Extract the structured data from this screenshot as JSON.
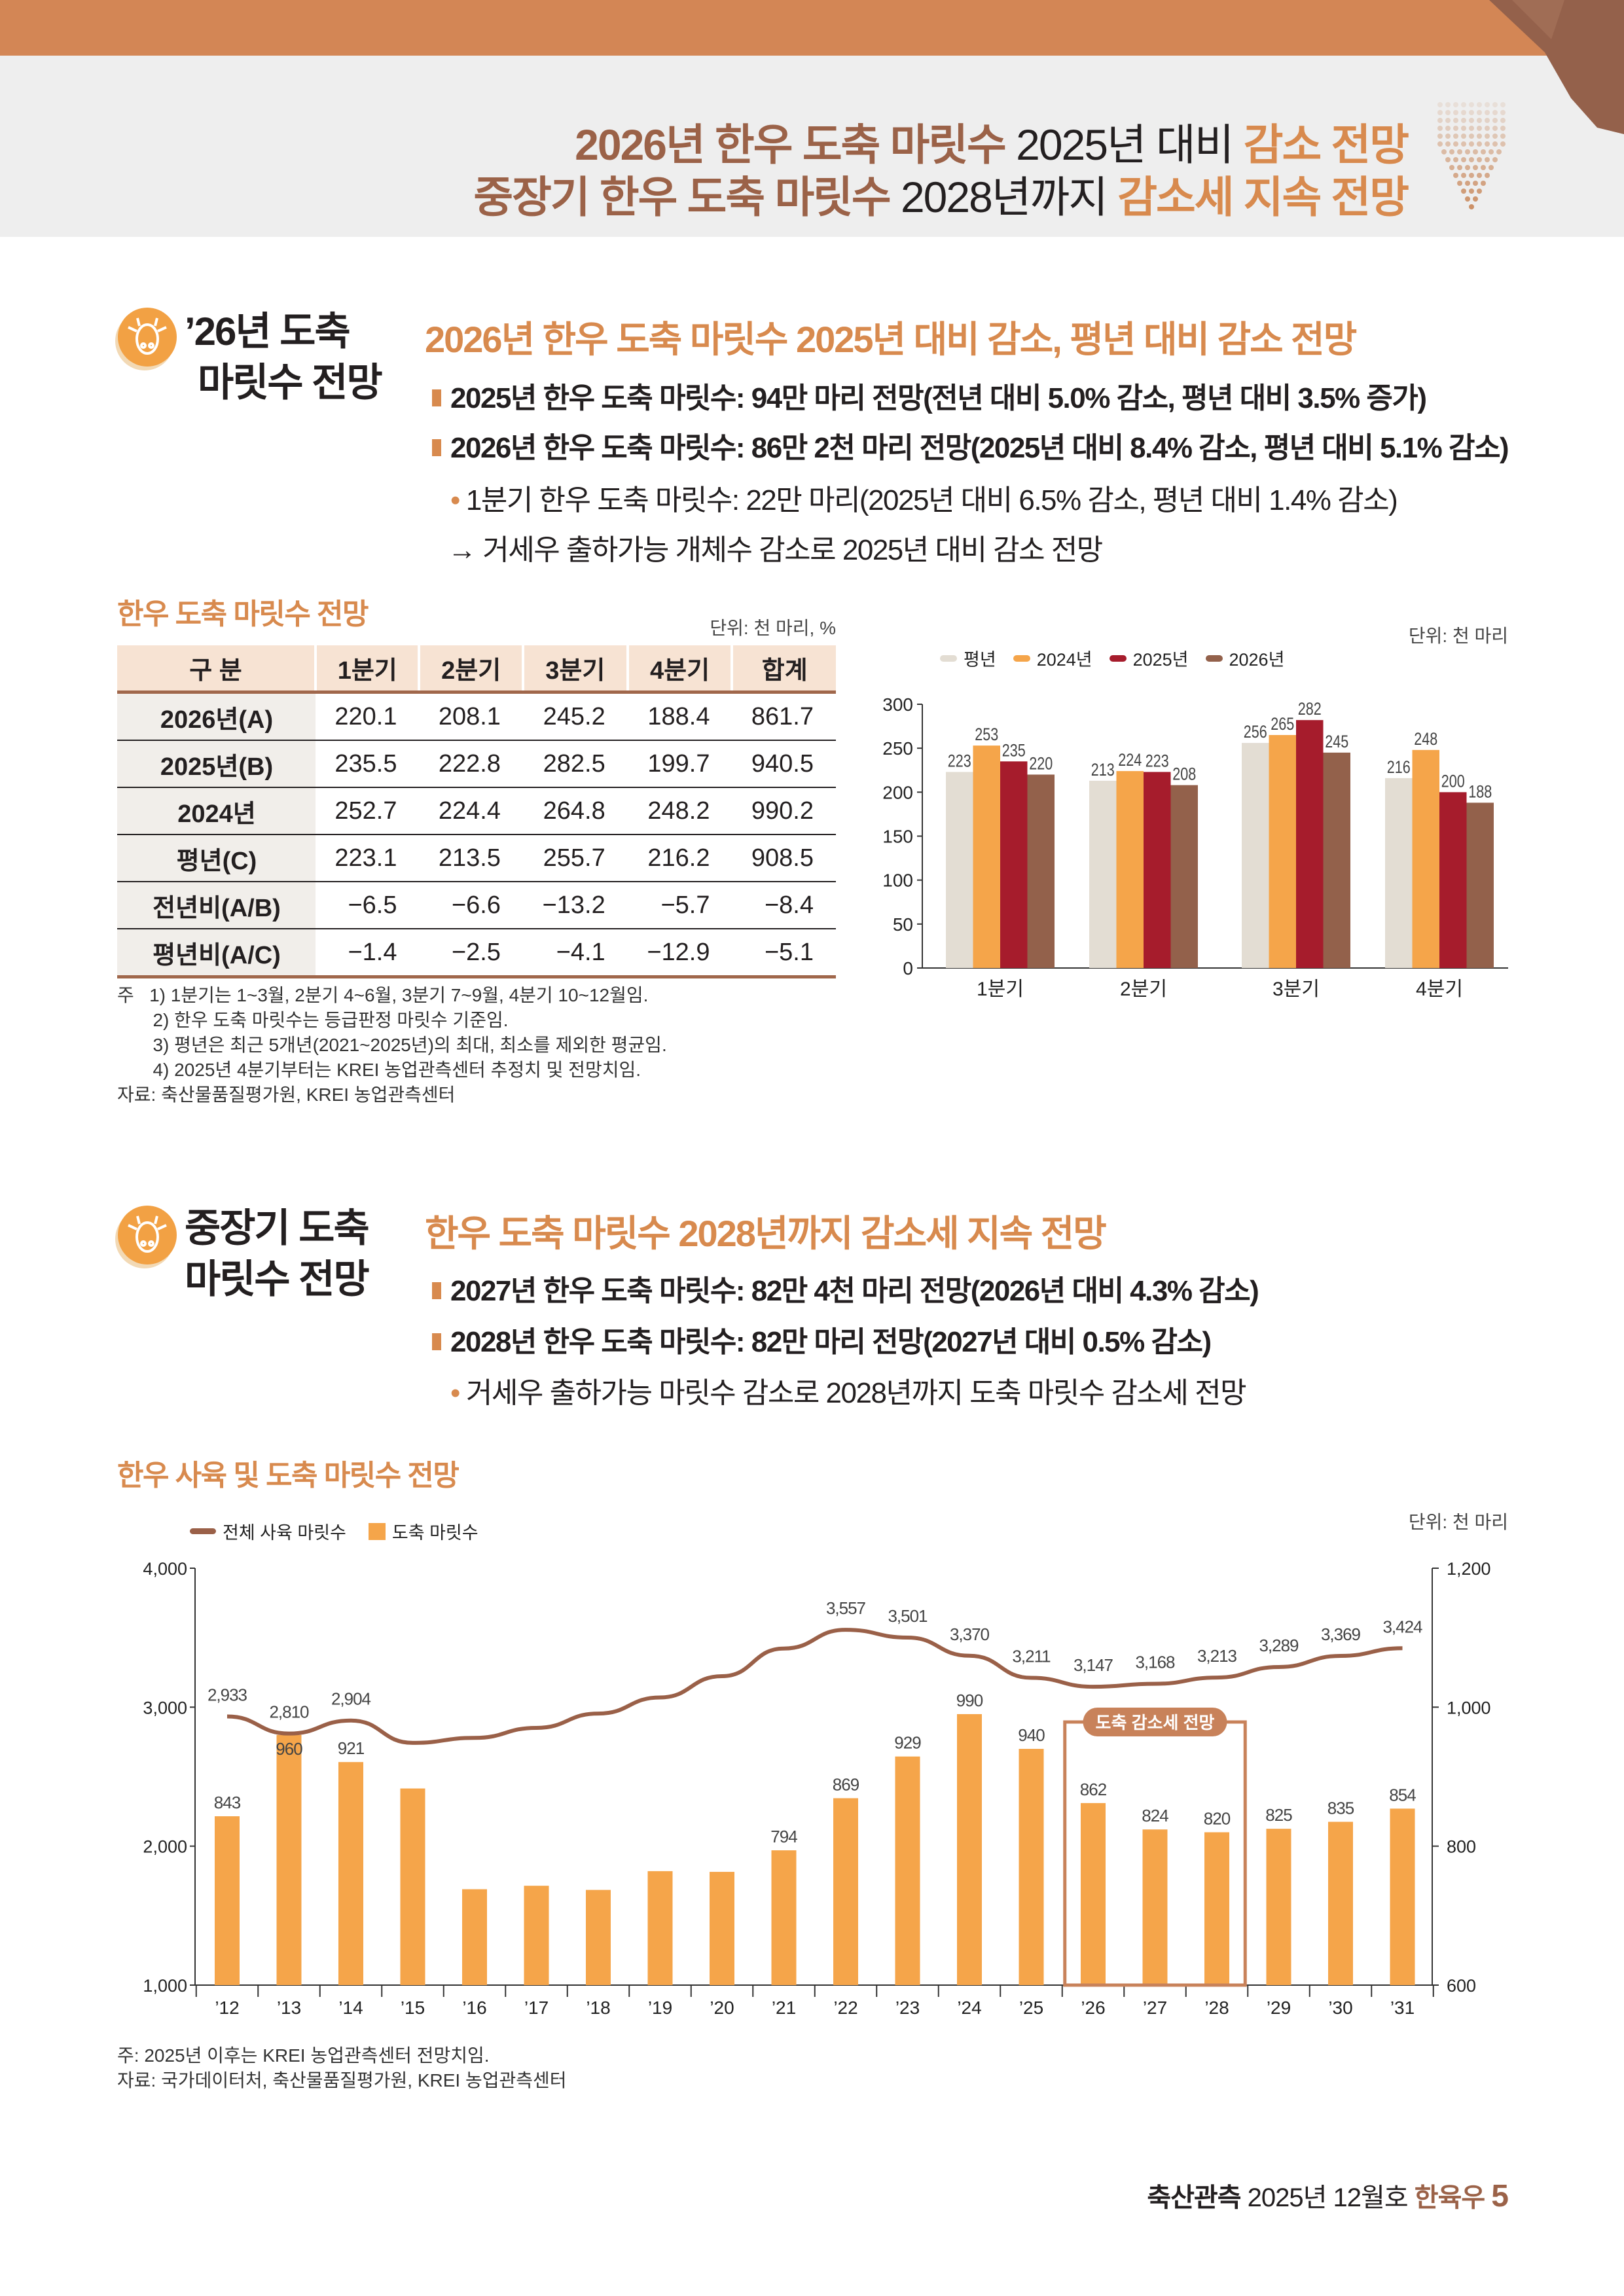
{
  "header": {
    "line1": {
      "part1": "2026년 한우 도축 마릿수",
      "part2": "2025년 대비",
      "part3": "감소 전망"
    },
    "line2": {
      "part1": "중장기 한우 도축 마릿수",
      "part2": "2028년까지",
      "part3": "감소세 지속 전망"
    }
  },
  "section1": {
    "title_line1": "’26년 도축",
    "title_line2": "마릿수 전망",
    "heading": "2026년 한우 도축 마릿수 2025년 대비 감소, 평년 대비 감소 전망",
    "bullets": [
      "2025년 한우 도축 마릿수: 94만 마리 전망(전년 대비 5.0% 감소, 평년 대비 3.5% 증가)",
      "2026년 한우 도축 마릿수: 86만 2천 마리 전망(2025년 대비 8.4% 감소, 평년 대비 5.1% 감소)"
    ],
    "sub_bullet": "1분기 한우 도축 마릿수: 22만 마리(2025년 대비 6.5% 감소, 평년 대비 1.4% 감소)",
    "arrow_note": "거세우 출하가능 개체수 감소로 2025년 대비 감소 전망",
    "arrow_glyph": "→"
  },
  "table": {
    "caption": "한우 도축 마릿수 전망",
    "unit": "단위: 천 마리, %",
    "headers": [
      "구 분",
      "1분기",
      "2분기",
      "3분기",
      "4분기",
      "합계"
    ],
    "rows": [
      [
        "2026년(A)",
        "220.1",
        "208.1",
        "245.2",
        "188.4",
        "861.7"
      ],
      [
        "2025년(B)",
        "235.5",
        "222.8",
        "282.5",
        "199.7",
        "940.5"
      ],
      [
        "2024년",
        "252.7",
        "224.4",
        "264.8",
        "248.2",
        "990.2"
      ],
      [
        "평년(C)",
        "223.1",
        "213.5",
        "255.7",
        "216.2",
        "908.5"
      ],
      [
        "전년비(A/B)",
        "−6.5",
        "−6.6",
        "−13.2",
        "−5.7",
        "−8.4"
      ],
      [
        "평년비(A/C)",
        "−1.4",
        "−2.5",
        "−4.1",
        "−12.9",
        "−5.1"
      ]
    ],
    "notes": [
      "주   1) 1분기는 1~3월, 2분기 4~6월, 3분기 7~9월, 4분기 10~12월임.",
      "       2) 한우 도축 마릿수는 등급판정 마릿수 기준임.",
      "       3) 평년은 최근 5개년(2021~2025년)의 최대, 최소를 제외한 평균임.",
      "       4) 2025년 4분기부터는 KREI 농업관측센터 추정치 및 전망치임.",
      "자료: 축산물품질평가원, KREI 농업관측센터"
    ]
  },
  "chart_data": [
    {
      "type": "bar",
      "title": "",
      "unit": "단위: 천 마리",
      "categories": [
        "1분기",
        "2분기",
        "3분기",
        "4분기"
      ],
      "series": [
        {
          "name": "평년",
          "color": "#e3ddd3",
          "values": [
            223,
            213,
            256,
            216
          ]
        },
        {
          "name": "2024년",
          "color": "#f5a54a",
          "values": [
            253,
            224,
            265,
            248
          ]
        },
        {
          "name": "2025년",
          "color": "#a61c2c",
          "values": [
            235,
            223,
            282,
            200
          ]
        },
        {
          "name": "2026년",
          "color": "#93614b",
          "values": [
            220,
            208,
            245,
            188
          ]
        }
      ],
      "ylim": [
        0,
        300
      ],
      "yticks": [
        "0",
        "50",
        "100",
        "150",
        "200",
        "250",
        "300"
      ],
      "legend": "top-left",
      "grid": false
    },
    {
      "type": "bar+line",
      "title": "한우 사육 및 도축 마릿수 전망",
      "unit": "단위: 천 마리",
      "categories": [
        "’12",
        "’13",
        "’14",
        "’15",
        "’16",
        "’17",
        "’18",
        "’19",
        "’20",
        "’21",
        "’22",
        "’23",
        "’24",
        "’25",
        "’26",
        "’27",
        "’28",
        "’29",
        "’30",
        "’31"
      ],
      "line": {
        "name": "전체 사육 마릿수",
        "color": "#9a6048",
        "axis": "left",
        "values": [
          2933,
          2810,
          2904,
          2743,
          2779,
          2851,
          2954,
          3070,
          3223,
          3422,
          3557,
          3501,
          3370,
          3211,
          3147,
          3168,
          3213,
          3289,
          3369,
          3424
        ],
        "labels": [
          "2,933",
          "2,810",
          "2,904",
          "",
          "",
          "",
          "",
          "",
          "",
          "",
          "3,557",
          "3,501",
          "3,370",
          "3,211",
          "3,147",
          "3,168",
          "3,213",
          "3,289",
          "3,369",
          "3,424"
        ]
      },
      "bars": {
        "name": "도축 마릿수",
        "color": "#f5a54a",
        "axis": "right",
        "values": [
          843,
          960,
          921,
          883,
          738,
          743,
          737,
          764,
          763,
          794,
          869,
          929,
          990,
          940,
          862,
          824,
          820,
          825,
          835,
          854
        ],
        "labels": [
          "843",
          "960",
          "921",
          "",
          "",
          "",
          "",
          "",
          "",
          "794",
          "869",
          "929",
          "990",
          "940",
          "862",
          "824",
          "820",
          "825",
          "835",
          "854"
        ]
      },
      "ylim_left": [
        1000,
        4000
      ],
      "yticks_left": [
        "1,000",
        "2,000",
        "3,000",
        "4,000"
      ],
      "ylim_right": [
        600,
        1200
      ],
      "yticks_right": [
        "600",
        "800",
        "1,000",
        "1,200"
      ],
      "annotation": {
        "text": "도축 감소세 전망",
        "from": "’26",
        "to": "’28",
        "color": "#c8825a"
      },
      "legend": "top-left"
    }
  ],
  "section2": {
    "title_line1": "중장기 도축",
    "title_line2": "마릿수 전망",
    "heading": "한우 도축 마릿수 2028년까지 감소세 지속 전망",
    "bullets": [
      "2027년 한우 도축 마릿수: 82만 4천 마리 전망(2026년 대비 4.3% 감소)",
      "2028년 한우 도축 마릿수: 82만 마리 전망(2027년 대비 0.5% 감소)"
    ],
    "sub_bullet": "거세우 출하가능 마릿수 감소로 2028년까지 도축 마릿수 감소세 전망"
  },
  "chart2_notes": [
    "주: 2025년 이후는 KREI 농업관측센터 전망치임.",
    "자료: 국가데이터처, 축산물품질평가원, KREI 농업관측센터"
  ],
  "footer": {
    "publication": "축산관측",
    "issue": "2025년 12월호",
    "section": "한육우",
    "page": "5"
  }
}
